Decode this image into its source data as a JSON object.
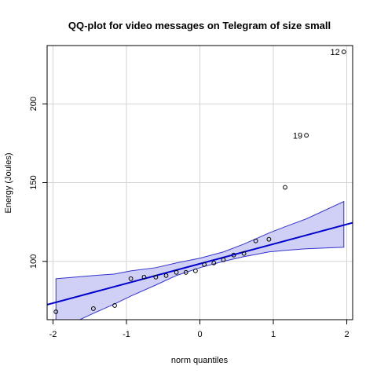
{
  "chart_data": {
    "type": "scatter",
    "title": "QQ-plot for video messages on Telegram of size small",
    "xlabel": "norm quantiles",
    "ylabel": "Energy (Joules)",
    "xlim": [
      -2.08,
      2.08
    ],
    "ylim": [
      63,
      237
    ],
    "x_ticks": [
      -2,
      -1,
      0,
      1,
      2
    ],
    "y_ticks": [
      100,
      150,
      200
    ],
    "grid": true,
    "colors": {
      "line": "#0000cc",
      "band_fill": "#d0d0f6",
      "band_edge": "#3333cc",
      "points": "#000000",
      "grid": "#d3d3d3"
    },
    "points": [
      {
        "x": -1.96,
        "y": 68
      },
      {
        "x": -1.45,
        "y": 70
      },
      {
        "x": -1.16,
        "y": 72
      },
      {
        "x": -0.94,
        "y": 89
      },
      {
        "x": -0.76,
        "y": 90
      },
      {
        "x": -0.6,
        "y": 90
      },
      {
        "x": -0.46,
        "y": 91
      },
      {
        "x": -0.32,
        "y": 93
      },
      {
        "x": -0.19,
        "y": 93
      },
      {
        "x": -0.06,
        "y": 94
      },
      {
        "x": 0.06,
        "y": 98
      },
      {
        "x": 0.19,
        "y": 99
      },
      {
        "x": 0.32,
        "y": 101
      },
      {
        "x": 0.46,
        "y": 104
      },
      {
        "x": 0.6,
        "y": 105
      },
      {
        "x": 0.76,
        "y": 113
      },
      {
        "x": 0.94,
        "y": 114
      },
      {
        "x": 1.16,
        "y": 147
      },
      {
        "x": 1.45,
        "y": 180,
        "label": "19"
      },
      {
        "x": 1.96,
        "y": 233,
        "label": "12"
      }
    ],
    "fit_line": {
      "x": [
        -2.08,
        2.08
      ],
      "y": [
        72.5,
        124.5
      ]
    },
    "band": {
      "x": [
        -1.96,
        -1.45,
        -1.16,
        -0.94,
        -0.6,
        -0.32,
        0.0,
        0.32,
        0.6,
        0.94,
        1.16,
        1.45,
        1.96
      ],
      "upper": [
        89,
        91,
        92,
        94,
        96,
        99,
        102,
        106,
        111,
        118,
        122,
        127,
        138
      ],
      "lower": [
        56,
        67,
        73,
        78,
        85,
        91,
        96,
        100,
        103,
        106,
        107,
        108,
        109
      ]
    }
  }
}
